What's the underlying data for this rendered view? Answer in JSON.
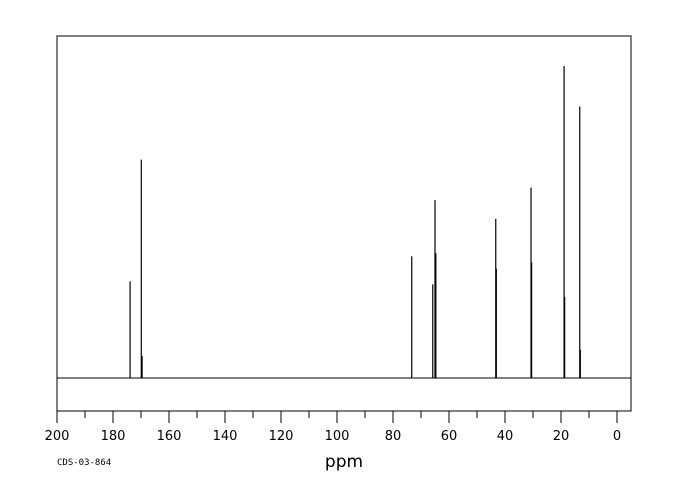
{
  "chart_data": {
    "type": "line",
    "title": "",
    "xlabel": "ppm",
    "ylabel": "",
    "xlim": [
      200,
      -5
    ],
    "x_reversed": true,
    "ylim": [
      -0.1,
      1.0
    ],
    "x_ticks": [
      200,
      180,
      160,
      140,
      120,
      100,
      80,
      60,
      40,
      20,
      0
    ],
    "grid": false,
    "legend": "none",
    "color": "#000000",
    "peaks": [
      {
        "ppm": 173.9,
        "intensity": 0.31
      },
      {
        "ppm": 169.9,
        "intensity": 0.7
      },
      {
        "ppm": 169.6,
        "intensity": 0.07
      },
      {
        "ppm": 73.3,
        "intensity": 0.39
      },
      {
        "ppm": 65.8,
        "intensity": 0.3
      },
      {
        "ppm": 65.0,
        "intensity": 0.57
      },
      {
        "ppm": 64.7,
        "intensity": 0.4
      },
      {
        "ppm": 43.3,
        "intensity": 0.51
      },
      {
        "ppm": 43.1,
        "intensity": 0.35
      },
      {
        "ppm": 30.7,
        "intensity": 0.61
      },
      {
        "ppm": 30.5,
        "intensity": 0.37
      },
      {
        "ppm": 18.9,
        "intensity": 1.0
      },
      {
        "ppm": 18.7,
        "intensity": 0.26
      },
      {
        "ppm": 13.3,
        "intensity": 0.87
      },
      {
        "ppm": 13.1,
        "intensity": 0.09
      }
    ]
  },
  "spectrum_code": "CDS-03-864"
}
